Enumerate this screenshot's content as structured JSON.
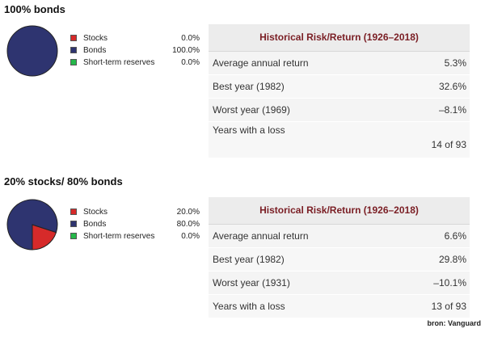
{
  "colors": {
    "stocks": "#d62a2a",
    "bonds": "#2e3470",
    "short_term_reserves": "#25b84a",
    "header_text": "#7a1e24"
  },
  "chart_data": [
    {
      "type": "pie",
      "title": "100% bonds",
      "legend": [
        {
          "name": "Stocks",
          "display": "0.0%"
        },
        {
          "name": "Bonds",
          "display": "100.0%"
        },
        {
          "name": "Short-term reserves",
          "display": "0.0%"
        }
      ],
      "values": [
        0.0,
        100.0,
        0.0
      ],
      "table": {
        "header": "Historical Risk/Return (1926–2018)",
        "rows": [
          {
            "label": "Average annual return",
            "value": "5.3%"
          },
          {
            "label": "Best year (1982)",
            "value": "32.6%"
          },
          {
            "label": "Worst year (1969)",
            "value": "–8.1%"
          },
          {
            "label": "Years with a loss",
            "value": "14 of 93"
          }
        ]
      }
    },
    {
      "type": "pie",
      "title": "20% stocks/ 80% bonds",
      "legend": [
        {
          "name": "Stocks",
          "display": "20.0%"
        },
        {
          "name": "Bonds",
          "display": "80.0%"
        },
        {
          "name": "Short-term reserves",
          "display": "0.0%"
        }
      ],
      "values": [
        20.0,
        80.0,
        0.0
      ],
      "table": {
        "header": "Historical Risk/Return (1926–2018)",
        "rows": [
          {
            "label": "Average annual return",
            "value": "6.6%"
          },
          {
            "label": "Best year (1982)",
            "value": "29.8%"
          },
          {
            "label": "Worst year (1931)",
            "value": "–10.1%"
          },
          {
            "label": "Years with a loss",
            "value": "13 of 93"
          }
        ]
      }
    }
  ],
  "source": "bron: Vanguard"
}
